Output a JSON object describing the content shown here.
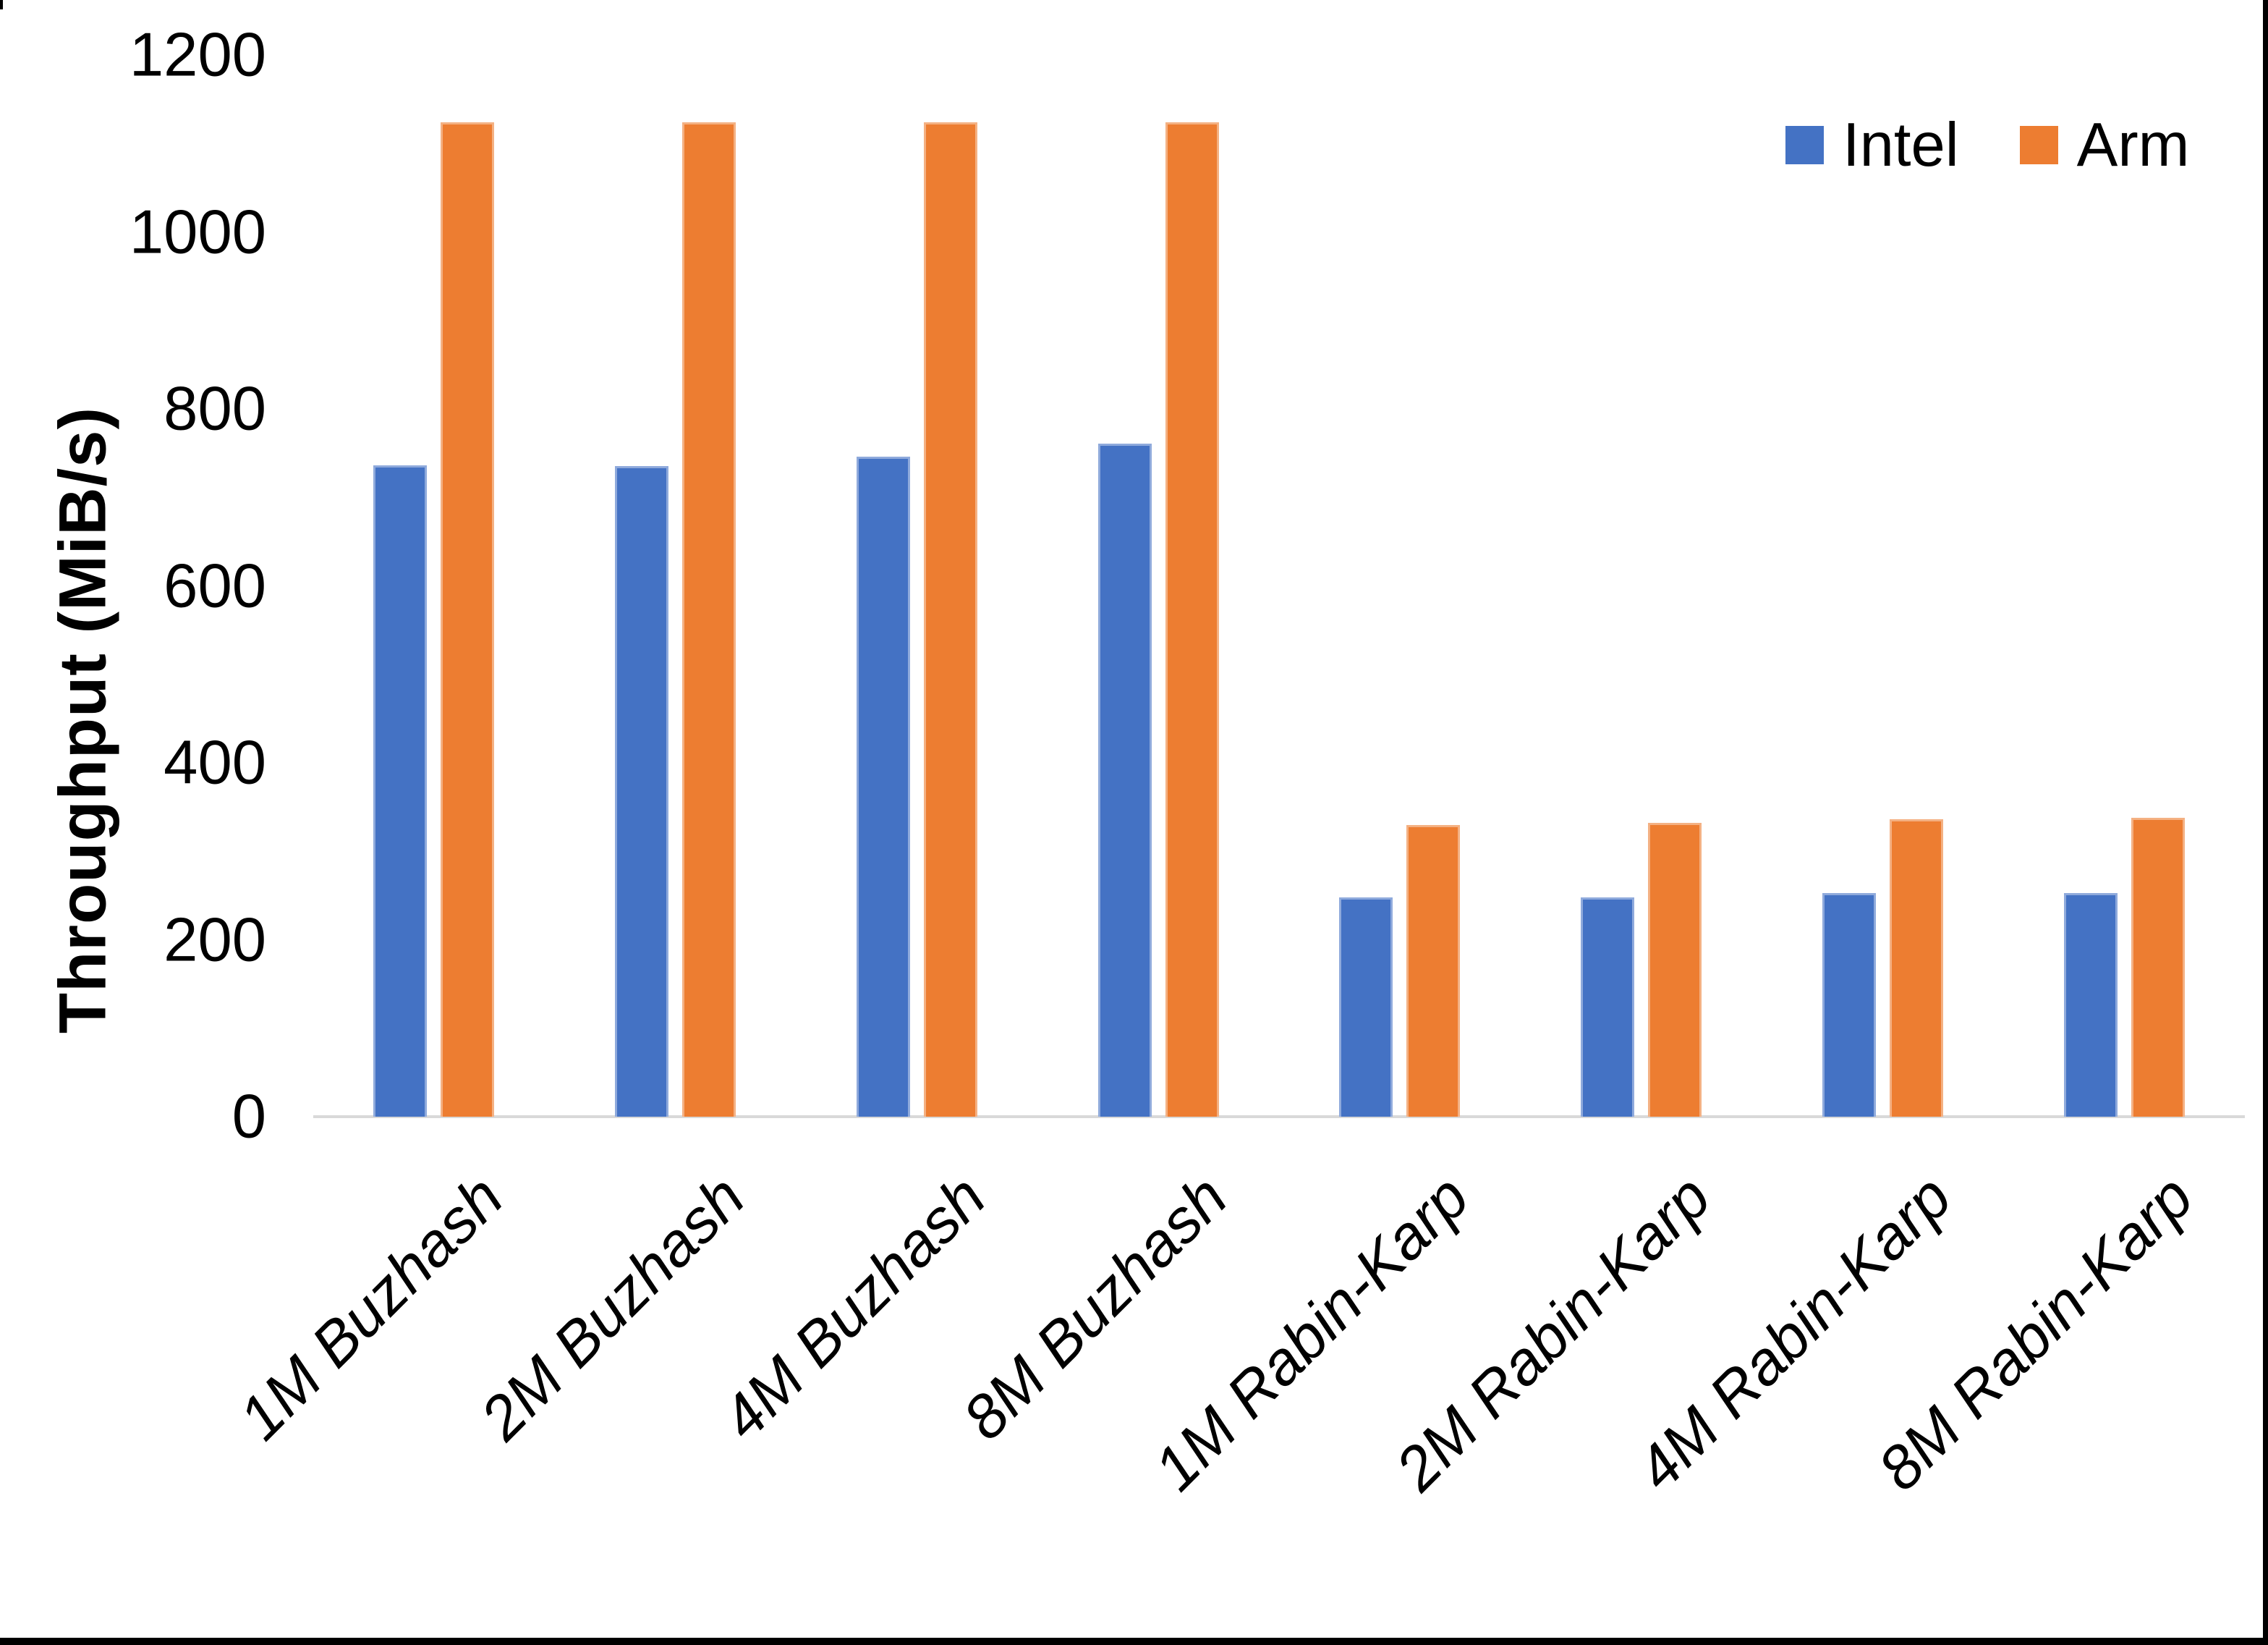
{
  "chart_data": {
    "type": "bar",
    "title": "",
    "xlabel": "",
    "ylabel": "Throughput (MiB/s)",
    "ylim": [
      0,
      1200
    ],
    "yticks": [
      0,
      200,
      400,
      600,
      800,
      1000,
      1200
    ],
    "grid": false,
    "legend_position": "top-right",
    "categories": [
      "1M Buzhash",
      "2M Buzhash",
      "4M Buzhash",
      "8M Buzhash",
      "1M Rabin-Karp",
      "2M Rabin-Karp",
      "4M Rabin-Karp",
      "8M Rabin-Karp"
    ],
    "series": [
      {
        "name": "Intel",
        "color": "#4472c4",
        "edge_color": "#8faadc",
        "values": [
          736,
          735,
          746,
          761,
          248,
          248,
          253,
          253
        ]
      },
      {
        "name": "Arm",
        "color": "#ed7d31",
        "edge_color": "#f4b183",
        "values": [
          1124,
          1124,
          1124,
          1124,
          330,
          332,
          336,
          338
        ]
      }
    ]
  },
  "frame": {
    "border_color": "#000000",
    "axis_line_color": "#d9d9d9",
    "background": "#ffffff"
  }
}
